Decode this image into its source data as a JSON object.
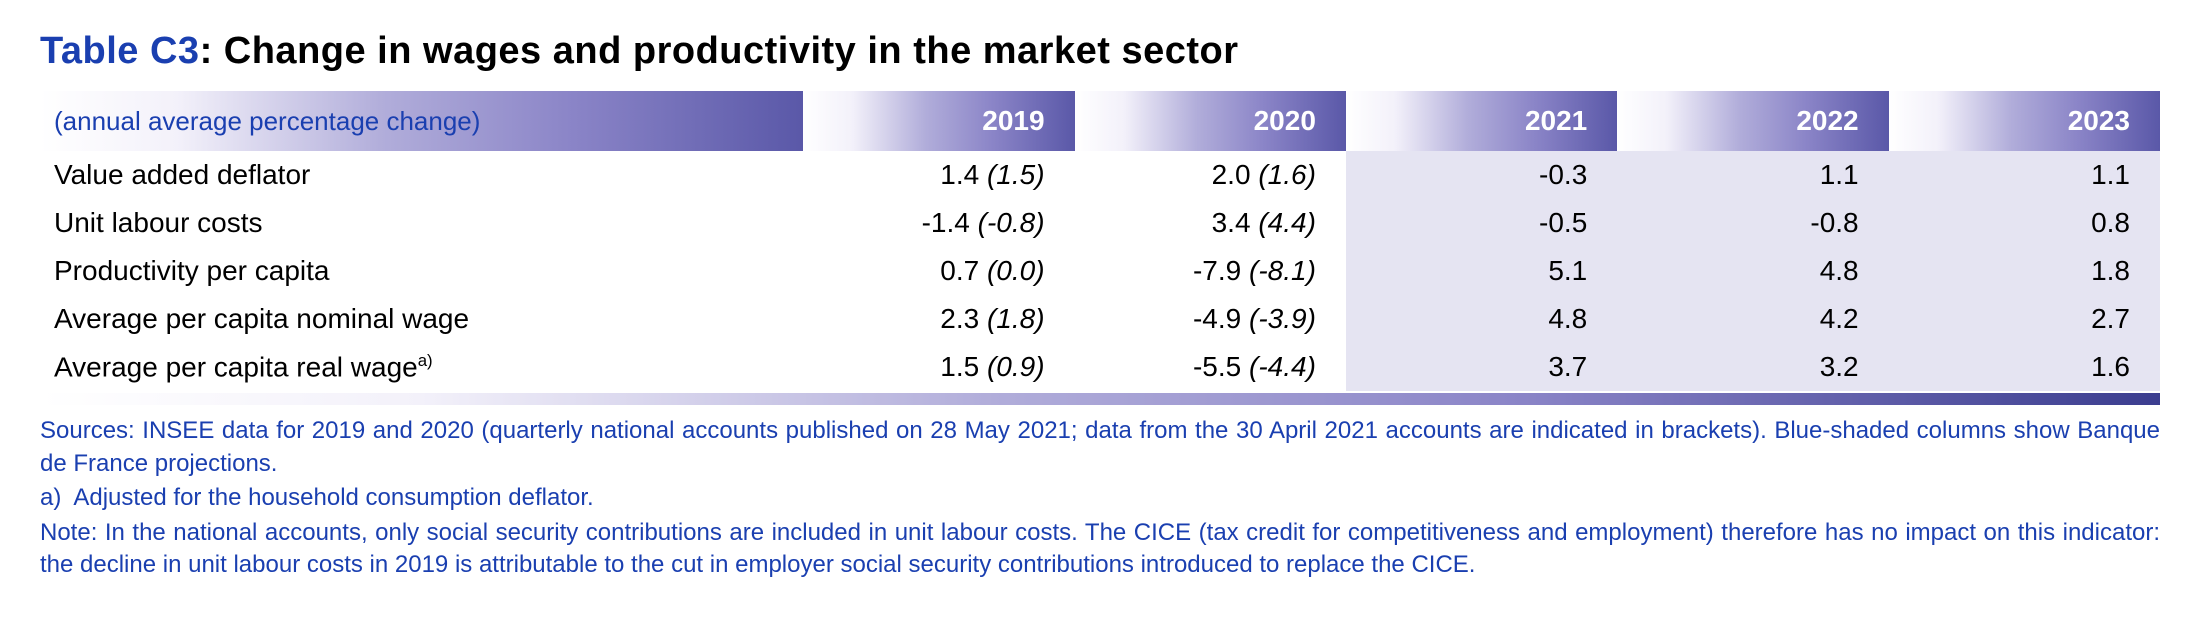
{
  "title": {
    "label": "Table C3",
    "sep": ": ",
    "text": "Change in wages and productivity in the market sector"
  },
  "subtitle": "(annual average percentage change)",
  "years": [
    "2019",
    "2020",
    "2021",
    "2022",
    "2023"
  ],
  "projection_start_index": 2,
  "rows": [
    {
      "label": "Value added deflator",
      "sup": "",
      "cells": [
        {
          "v": "1.4",
          "p": "(1.5)"
        },
        {
          "v": "2.0",
          "p": "(1.6)"
        },
        {
          "v": "-0.3",
          "p": ""
        },
        {
          "v": "1.1",
          "p": ""
        },
        {
          "v": "1.1",
          "p": ""
        }
      ]
    },
    {
      "label": "Unit labour costs",
      "sup": "",
      "cells": [
        {
          "v": "-1.4",
          "p": "(-0.8)"
        },
        {
          "v": "3.4",
          "p": "(4.4)"
        },
        {
          "v": "-0.5",
          "p": ""
        },
        {
          "v": "-0.8",
          "p": ""
        },
        {
          "v": "0.8",
          "p": ""
        }
      ]
    },
    {
      "label": "Productivity per capita",
      "sup": "",
      "cells": [
        {
          "v": "0.7",
          "p": "(0.0)"
        },
        {
          "v": "-7.9",
          "p": "(-8.1)"
        },
        {
          "v": "5.1",
          "p": ""
        },
        {
          "v": "4.8",
          "p": ""
        },
        {
          "v": "1.8",
          "p": ""
        }
      ]
    },
    {
      "label": "Average per capita nominal wage",
      "sup": "",
      "cells": [
        {
          "v": "2.3",
          "p": "(1.8)"
        },
        {
          "v": "-4.9",
          "p": "(-3.9)"
        },
        {
          "v": "4.8",
          "p": ""
        },
        {
          "v": "4.2",
          "p": ""
        },
        {
          "v": "2.7",
          "p": ""
        }
      ]
    },
    {
      "label": "Average per capita real wage",
      "sup": "a)",
      "cells": [
        {
          "v": "1.5",
          "p": "(0.9)"
        },
        {
          "v": "-5.5",
          "p": "(-4.4)"
        },
        {
          "v": "3.7",
          "p": ""
        },
        {
          "v": "3.2",
          "p": ""
        },
        {
          "v": "1.6",
          "p": ""
        }
      ]
    }
  ],
  "notes": {
    "sources": "Sources: INSEE data for 2019 and 2020 (quarterly national accounts published on 28 May 2021; data from the 30 April 2021 accounts are indicated in brackets). Blue-shaded columns show Banque de France projections.",
    "footnote_a": "a) Adjusted for the household consumption deflator.",
    "note": "Note: In the national accounts, only social security contributions are included in unit labour costs. The CICE (tax credit for competitiveness and employment) therefore has no impact on this indicator: the decline in unit labour costs in 2019 is attributable to the cut in employer social security contributions introduced to replace the CICE."
  },
  "colors": {
    "accent": "#1a3fb0",
    "projection_bg": "#e5e4f2"
  }
}
